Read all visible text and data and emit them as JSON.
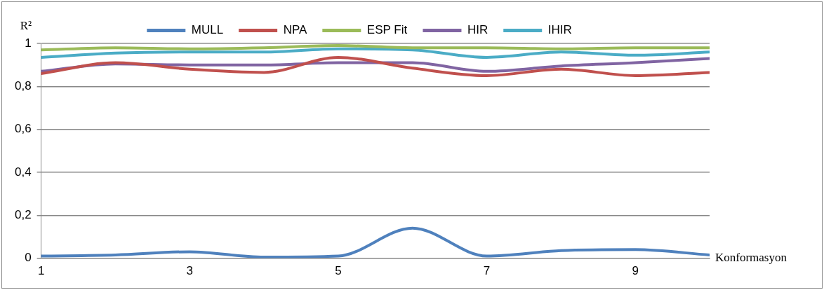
{
  "chart_data": {
    "type": "line",
    "ylabel": "R²",
    "xlabel": "Konformasyon",
    "x": [
      1,
      2,
      3,
      4,
      5,
      6,
      7,
      8,
      9,
      10
    ],
    "xlim": [
      1,
      10
    ],
    "xticks": [
      1,
      3,
      5,
      7,
      9
    ],
    "ylim": [
      0,
      1
    ],
    "yticks": [
      {
        "value": 0,
        "label": "0"
      },
      {
        "value": 0.2,
        "label": "0,2"
      },
      {
        "value": 0.4,
        "label": "0,4"
      },
      {
        "value": 0.6,
        "label": "0,6"
      },
      {
        "value": 0.8,
        "label": "0,8"
      },
      {
        "value": 1,
        "label": "1"
      }
    ],
    "grid": "y",
    "legend": "top",
    "marker": "none",
    "line_style": "solid",
    "series": [
      {
        "name": "MULL",
        "color": "#4f81bd",
        "values": [
          0.01,
          0.015,
          0.03,
          0.005,
          0.01,
          0.14,
          0.01,
          0.035,
          0.04,
          0.015
        ]
      },
      {
        "name": "NPA",
        "color": "#c0504d",
        "values": [
          0.86,
          0.91,
          0.88,
          0.865,
          0.935,
          0.885,
          0.85,
          0.88,
          0.85,
          0.865
        ]
      },
      {
        "name": "ESP Fit",
        "color": "#9bbb59",
        "values": [
          0.97,
          0.98,
          0.975,
          0.98,
          0.99,
          0.98,
          0.98,
          0.975,
          0.98,
          0.98
        ]
      },
      {
        "name": "HIR",
        "color": "#8064a2",
        "values": [
          0.87,
          0.905,
          0.9,
          0.9,
          0.91,
          0.91,
          0.87,
          0.895,
          0.91,
          0.93
        ]
      },
      {
        "name": "IHIR",
        "color": "#4bacc6",
        "values": [
          0.935,
          0.955,
          0.96,
          0.96,
          0.975,
          0.97,
          0.935,
          0.96,
          0.945,
          0.96
        ]
      }
    ]
  }
}
